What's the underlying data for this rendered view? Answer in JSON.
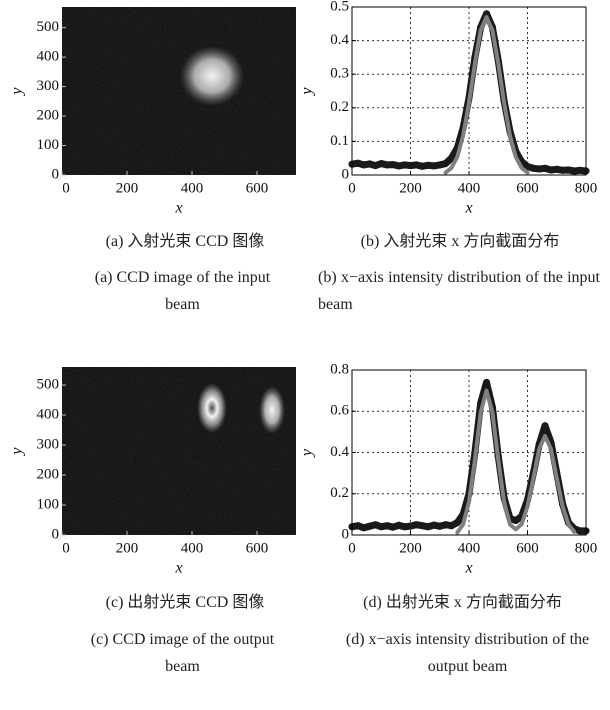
{
  "chart_data": [
    {
      "type": "image",
      "xlabel": "x",
      "ylabel": "y",
      "xlim": [
        0,
        720
      ],
      "ylim": [
        0,
        570
      ],
      "xticks": [
        0,
        200,
        400,
        600
      ],
      "yticks": [
        0,
        100,
        200,
        300,
        400,
        500
      ],
      "caption": "(a) 入射光束 CCD 图像",
      "caption_en": "(a) CCD image of the input beam"
    },
    {
      "type": "line",
      "xlabel": "x",
      "ylabel": "y",
      "grid": true,
      "xlim": [
        0,
        800
      ],
      "ylim": [
        0,
        0.5
      ],
      "xticks": [
        0,
        200,
        400,
        600,
        800
      ],
      "yticks": [
        0,
        0.1,
        0.2,
        0.3,
        0.4,
        0.5
      ],
      "x": [
        0,
        20,
        40,
        60,
        80,
        100,
        120,
        140,
        160,
        180,
        200,
        220,
        240,
        260,
        280,
        300,
        320,
        340,
        360,
        380,
        400,
        420,
        440,
        460,
        480,
        500,
        520,
        540,
        560,
        580,
        600,
        620,
        640,
        660,
        680,
        700,
        720,
        740,
        760,
        780,
        800
      ],
      "series": [
        {
          "color": "#1a1a1a",
          "values": [
            0.032,
            0.035,
            0.03,
            0.033,
            0.028,
            0.034,
            0.03,
            0.031,
            0.027,
            0.03,
            0.028,
            0.03,
            0.026,
            0.029,
            0.027,
            0.03,
            0.034,
            0.05,
            0.08,
            0.14,
            0.23,
            0.35,
            0.44,
            0.48,
            0.44,
            0.34,
            0.22,
            0.13,
            0.07,
            0.04,
            0.025,
            0.02,
            0.018,
            0.02,
            0.015,
            0.017,
            0.014,
            0.015,
            0.012,
            0.014,
            0.012
          ]
        },
        {
          "color": "#808080",
          "values": [
            null,
            null,
            null,
            null,
            null,
            null,
            null,
            null,
            null,
            null,
            null,
            null,
            null,
            null,
            null,
            null,
            0.007,
            0.021,
            0.054,
            0.117,
            0.215,
            0.332,
            0.431,
            0.47,
            0.431,
            0.332,
            0.215,
            0.117,
            0.054,
            0.021,
            0.007,
            null,
            null,
            null,
            null,
            null,
            null,
            null,
            null,
            null,
            null
          ]
        }
      ],
      "caption": "(b) 入射光束 x 方向截面分布",
      "caption_en": "(b) x−axis intensity distribution of the input beam"
    },
    {
      "type": "image",
      "xlabel": "x",
      "ylabel": "y",
      "xlim": [
        0,
        720
      ],
      "ylim": [
        0,
        560
      ],
      "xticks": [
        0,
        200,
        400,
        600
      ],
      "yticks": [
        0,
        100,
        200,
        300,
        400,
        500
      ],
      "caption": "(c) 出射光束 CCD 图像",
      "caption_en": "(c) CCD image of the output beam"
    },
    {
      "type": "line",
      "xlabel": "x",
      "ylabel": "y",
      "grid": true,
      "xlim": [
        0,
        800
      ],
      "ylim": [
        0,
        0.8
      ],
      "xticks": [
        0,
        200,
        400,
        600,
        800
      ],
      "yticks": [
        0,
        0.2,
        0.4,
        0.6,
        0.8
      ],
      "x": [
        0,
        20,
        40,
        60,
        80,
        100,
        120,
        140,
        160,
        180,
        200,
        220,
        240,
        260,
        280,
        300,
        320,
        340,
        360,
        380,
        400,
        420,
        440,
        460,
        480,
        500,
        520,
        540,
        560,
        580,
        600,
        620,
        640,
        660,
        680,
        700,
        720,
        740,
        760,
        780,
        800
      ],
      "series": [
        {
          "color": "#1a1a1a",
          "values": [
            0.04,
            0.045,
            0.035,
            0.042,
            0.05,
            0.04,
            0.045,
            0.038,
            0.047,
            0.04,
            0.043,
            0.05,
            0.045,
            0.04,
            0.048,
            0.042,
            0.05,
            0.045,
            0.06,
            0.1,
            0.2,
            0.4,
            0.64,
            0.74,
            0.62,
            0.38,
            0.18,
            0.08,
            0.07,
            0.09,
            0.17,
            0.3,
            0.44,
            0.53,
            0.45,
            0.3,
            0.15,
            0.06,
            0.03,
            0.02,
            0.02
          ]
        },
        {
          "color": "#808080",
          "values": [
            null,
            null,
            null,
            null,
            null,
            null,
            null,
            null,
            null,
            null,
            null,
            null,
            null,
            null,
            null,
            null,
            null,
            null,
            0.012,
            0.051,
            0.161,
            0.364,
            0.594,
            0.7,
            0.594,
            0.364,
            0.161,
            0.051,
            0.027,
            0.052,
            0.138,
            0.276,
            0.418,
            0.48,
            0.418,
            0.276,
            0.138,
            0.052,
            0.015,
            null,
            null
          ]
        }
      ],
      "caption": "(d) 出射光束 x 方向截面分布",
      "caption_en": "(d) x−axis intensity distribution of the output beam"
    }
  ]
}
